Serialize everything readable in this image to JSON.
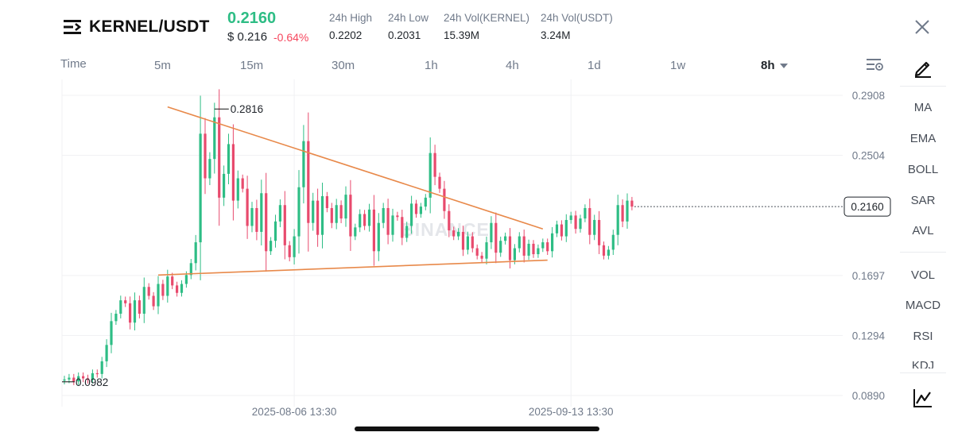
{
  "header": {
    "pair": "KERNEL/USDT",
    "last_price": "0.2160",
    "usd_price": "$ 0.216",
    "change": "-0.64%",
    "stats": [
      {
        "label": "24h High",
        "value": "0.2202"
      },
      {
        "label": "24h Low",
        "value": "0.2031"
      },
      {
        "label": "24h Vol(KERNEL)",
        "value": "15.39M"
      },
      {
        "label": "24h Vol(USDT)",
        "value": "3.24M"
      }
    ]
  },
  "timeframes": {
    "items": [
      "Time",
      "5m",
      "15m",
      "30m",
      "1h",
      "4h",
      "1d",
      "1w"
    ],
    "selected": "8h"
  },
  "sidebar": {
    "indicators_main": [
      "MA",
      "EMA",
      "BOLL",
      "SAR",
      "AVL"
    ],
    "indicators_sub": [
      "VOL",
      "MACD",
      "RSI",
      "KDJ"
    ],
    "icons": [
      "pen-icon",
      "chart-type-icon"
    ]
  },
  "colors": {
    "up": "#2ebd85",
    "down": "#e84a6d",
    "trendline": "#e8894a",
    "grid": "#f0f1f3"
  },
  "chart_data": {
    "type": "candlestick",
    "pair": "KERNEL/USDT",
    "interval": "8h",
    "watermark": "BINANCE",
    "y_ticks": [
      0.2908,
      0.2504,
      0.1697,
      0.1294,
      0.089
    ],
    "ylim": [
      0.089,
      0.2908
    ],
    "x_ticks": [
      "2025-08-06 13:30",
      "2025-09-13 13:30"
    ],
    "current_price": 0.216,
    "high_annotation": 0.2816,
    "low_annotation": 0.0982,
    "trendlines": [
      {
        "name": "upper-descending",
        "from": {
          "i": 22,
          "v": 0.283
        },
        "to": {
          "i": 102,
          "v": 0.201
        }
      },
      {
        "name": "lower-rising",
        "from": {
          "i": 20,
          "v": 0.17
        },
        "to": {
          "i": 103,
          "v": 0.18
        }
      }
    ],
    "closes": [
      0.0998,
      0.101,
      0.0985,
      0.102,
      0.1005,
      0.0996,
      0.104,
      0.1035,
      0.112,
      0.123,
      0.139,
      0.144,
      0.153,
      0.151,
      0.138,
      0.153,
      0.144,
      0.162,
      0.156,
      0.149,
      0.164,
      0.156,
      0.169,
      0.163,
      0.158,
      0.164,
      0.17,
      0.178,
      0.192,
      0.265,
      0.235,
      0.248,
      0.276,
      0.222,
      0.238,
      0.258,
      0.22,
      0.235,
      0.228,
      0.203,
      0.215,
      0.199,
      0.225,
      0.186,
      0.193,
      0.206,
      0.217,
      0.19,
      0.182,
      0.196,
      0.229,
      0.26,
      0.205,
      0.22,
      0.197,
      0.223,
      0.215,
      0.205,
      0.217,
      0.208,
      0.224,
      0.196,
      0.202,
      0.211,
      0.203,
      0.214,
      0.186,
      0.205,
      0.215,
      0.197,
      0.21,
      0.209,
      0.195,
      0.203,
      0.218,
      0.211,
      0.216,
      0.222,
      0.252,
      0.236,
      0.228,
      0.213,
      0.2,
      0.196,
      0.199,
      0.187,
      0.196,
      0.188,
      0.183,
      0.181,
      0.192,
      0.205,
      0.185,
      0.193,
      0.196,
      0.18,
      0.188,
      0.196,
      0.183,
      0.191,
      0.184,
      0.188,
      0.192,
      0.186,
      0.198,
      0.204,
      0.196,
      0.207,
      0.21,
      0.201,
      0.208,
      0.215,
      0.197,
      0.207,
      0.19,
      0.183,
      0.187,
      0.197,
      0.217,
      0.206,
      0.22,
      0.216
    ]
  }
}
